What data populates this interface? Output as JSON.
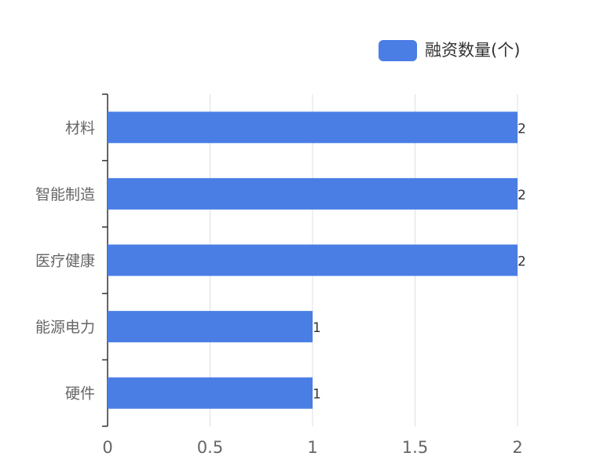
{
  "chart_data": {
    "type": "bar",
    "orientation": "horizontal",
    "categories": [
      "材料",
      "智能制造",
      "医疗健康",
      "能源电力",
      "硬件"
    ],
    "series": [
      {
        "name": "融资数量(个)",
        "values": [
          2,
          2,
          2,
          1,
          1
        ]
      }
    ],
    "x_ticks": [
      "0",
      "0.5",
      "1",
      "1.5",
      "2"
    ],
    "xlim": [
      0,
      2
    ],
    "grid": true,
    "legend_position": "top-right",
    "data_labels": true
  },
  "colors": {
    "bar": "#4a7ee5",
    "grid": "#dcdfe6",
    "axis": "#333333",
    "tick_label": "#666666",
    "category_label": "#666666",
    "data_label": "#333333"
  }
}
